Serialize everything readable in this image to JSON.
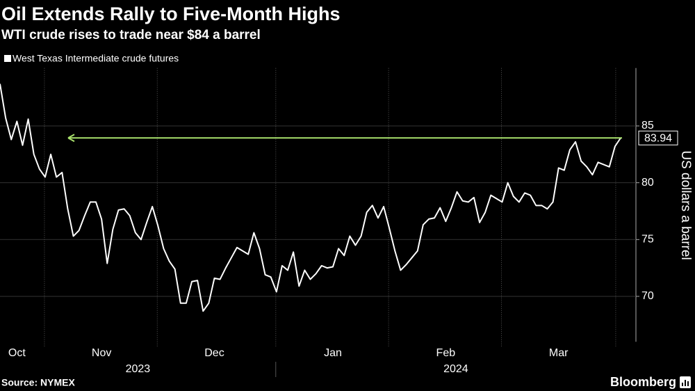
{
  "chart_data": {
    "type": "line",
    "title": "Oil Extends Rally to Five-Month Highs",
    "subtitle": "WTI crude rises to trade near $84 a barrel",
    "y_axis_label": "US dollars a barrel",
    "source": "Source: NYMEX",
    "brand": "Bloomberg",
    "categories": [
      null,
      null,
      null,
      "Oct",
      null,
      null,
      null,
      null,
      null,
      null,
      null,
      null,
      null,
      null,
      null,
      null,
      null,
      null,
      "Nov",
      null,
      null,
      null,
      null,
      null,
      null,
      null,
      null,
      null,
      null,
      null,
      null,
      null,
      null,
      null,
      null,
      null,
      null,
      null,
      "Dec",
      null,
      null,
      null,
      null,
      null,
      null,
      null,
      null,
      null,
      null,
      null,
      null,
      null,
      null,
      null,
      null,
      null,
      null,
      null,
      null,
      "Jan",
      null,
      null,
      null,
      null,
      null,
      null,
      null,
      null,
      null,
      null,
      null,
      null,
      null,
      null,
      null,
      null,
      null,
      null,
      null,
      "Feb",
      null,
      null,
      null,
      null,
      null,
      null,
      null,
      null,
      null,
      null,
      null,
      null,
      null,
      null,
      null,
      null,
      null,
      null,
      null,
      "Mar",
      null,
      null,
      null,
      null,
      null,
      null,
      null,
      null,
      null,
      null,
      null
    ],
    "x_groups": [
      "2023",
      "2024"
    ],
    "series": [
      {
        "name": "West Texas Intermediate crude futures",
        "color": "#ffffff",
        "values": [
          88.7,
          85.7,
          83.8,
          85.4,
          83.3,
          85.6,
          82.5,
          81.2,
          80.5,
          82.5,
          80.5,
          80.9,
          77.7,
          75.3,
          75.8,
          77.1,
          78.3,
          78.3,
          76.8,
          72.9,
          75.9,
          77.6,
          77.7,
          77.1,
          75.6,
          75.0,
          76.5,
          77.9,
          76.2,
          74.2,
          73.1,
          72.4,
          69.4,
          69.4,
          71.3,
          71.4,
          68.7,
          69.4,
          71.6,
          71.5,
          72.5,
          73.4,
          74.3,
          74.0,
          73.7,
          75.6,
          74.2,
          71.9,
          71.7,
          70.4,
          72.7,
          72.3,
          73.9,
          70.9,
          72.3,
          71.5,
          72.0,
          72.7,
          72.5,
          72.6,
          74.2,
          73.6,
          75.3,
          74.5,
          75.3,
          77.4,
          78.0,
          76.9,
          77.9,
          76.0,
          74.0,
          72.3,
          72.8,
          73.4,
          74.0,
          76.3,
          76.8,
          76.9,
          77.8,
          76.6,
          77.8,
          79.2,
          78.4,
          78.3,
          78.7,
          76.5,
          77.4,
          78.9,
          78.6,
          78.3,
          80.0,
          78.8,
          78.3,
          79.1,
          78.9,
          78.0,
          78.0,
          77.7,
          78.3,
          81.3,
          81.1,
          82.9,
          83.6,
          81.9,
          81.4,
          80.7,
          81.8,
          81.6,
          81.4,
          83.2,
          83.94
        ]
      }
    ],
    "annotation_color": "#a8e06c",
    "ylim": [
      66,
      90.1
    ],
    "yticks": [
      70,
      75,
      80,
      85
    ],
    "grid": true
  }
}
